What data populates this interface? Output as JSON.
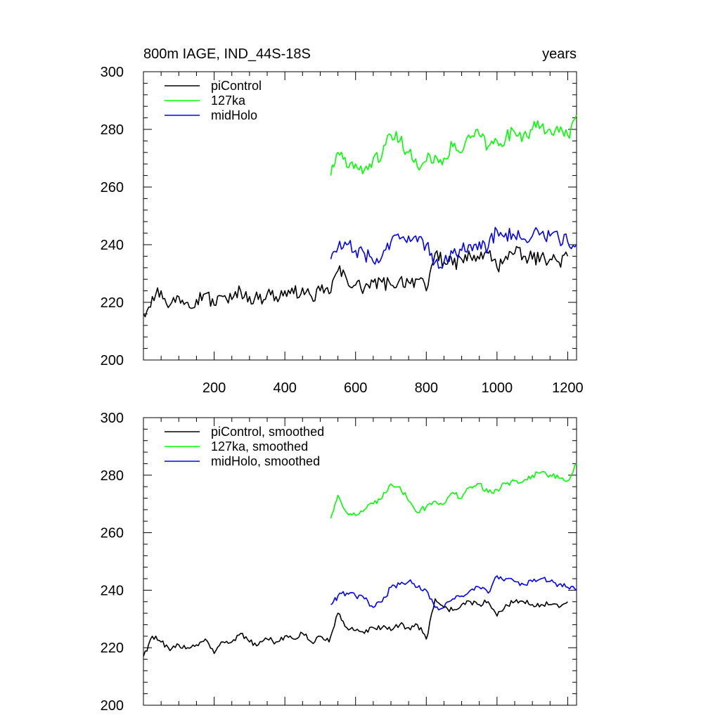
{
  "figure": {
    "title_left": "800m IAGE, IND_44S-18S",
    "title_right": "years"
  },
  "colors": {
    "piControl": "#000000",
    "127ka": "#00ff00",
    "midHolo": "#0000ff"
  },
  "chart_data": [
    {
      "type": "line",
      "title": "800m IAGE, IND_44S-18S",
      "right_label": "years",
      "xlim": [
        0,
        1225
      ],
      "ylim": [
        200,
        300
      ],
      "x_ticks": [
        200,
        400,
        600,
        800,
        1000,
        1200
      ],
      "x_tick_labels": [
        "200",
        "400",
        "600",
        "800",
        "1000",
        "1200"
      ],
      "y_ticks": [
        200,
        220,
        240,
        260,
        280,
        300
      ],
      "y_tick_labels": [
        "200",
        "220",
        "240",
        "260",
        "280",
        "300"
      ],
      "legend_position": "top-left",
      "series": [
        {
          "name": "piControl",
          "color": "#000000",
          "x": [
            0,
            25,
            50,
            75,
            100,
            125,
            150,
            175,
            200,
            225,
            250,
            275,
            300,
            325,
            350,
            375,
            400,
            425,
            450,
            475,
            500,
            525,
            550,
            575,
            600,
            625,
            650,
            675,
            700,
            725,
            750,
            775,
            800,
            825,
            850,
            875,
            900,
            925,
            950,
            975,
            1000,
            1025,
            1050,
            1075,
            1100,
            1125,
            1150,
            1175,
            1200
          ],
          "values": [
            216,
            222,
            224,
            219,
            222,
            220,
            221,
            223,
            219,
            222,
            221,
            224,
            222,
            221,
            223,
            222,
            224,
            223,
            225,
            222,
            224,
            223,
            231,
            228,
            226,
            225,
            227,
            227,
            226,
            228,
            227,
            228,
            224,
            237,
            234,
            233,
            235,
            236,
            235,
            237,
            232,
            236,
            237,
            236,
            235,
            236,
            235,
            234,
            236
          ]
        },
        {
          "name": "127ka",
          "color": "#00ff00",
          "x": [
            530,
            550,
            575,
            600,
            625,
            650,
            675,
            700,
            725,
            750,
            775,
            800,
            825,
            850,
            875,
            900,
            925,
            950,
            975,
            1000,
            1025,
            1050,
            1075,
            1100,
            1125,
            1150,
            1175,
            1200,
            1225
          ],
          "values": [
            264,
            272,
            267,
            268,
            266,
            270,
            271,
            278,
            276,
            272,
            267,
            269,
            271,
            270,
            274,
            272,
            277,
            278,
            274,
            276,
            277,
            279,
            278,
            280,
            281,
            280,
            279,
            278,
            285
          ]
        },
        {
          "name": "midHolo",
          "color": "#0000ff",
          "x": [
            530,
            550,
            575,
            600,
            625,
            650,
            675,
            700,
            725,
            750,
            775,
            800,
            825,
            850,
            875,
            900,
            925,
            950,
            975,
            1000,
            1025,
            1050,
            1075,
            1100,
            1125,
            1150,
            1175,
            1200,
            1225
          ],
          "values": [
            235,
            239,
            240,
            238,
            237,
            234,
            236,
            241,
            242,
            243,
            241,
            240,
            234,
            234,
            237,
            238,
            240,
            241,
            239,
            245,
            244,
            243,
            242,
            243,
            244,
            243,
            242,
            241,
            240
          ]
        }
      ]
    },
    {
      "type": "line",
      "xlim": [
        0,
        1225
      ],
      "ylim": [
        200,
        300
      ],
      "x_ticks": [
        200,
        400,
        600,
        800,
        1000,
        1200
      ],
      "y_ticks": [
        200,
        220,
        240,
        260,
        280,
        300
      ],
      "y_tick_labels": [
        "200",
        "220",
        "240",
        "260",
        "280",
        "300"
      ],
      "legend_position": "top-left",
      "series": [
        {
          "name": "piControl, smoothed",
          "color": "#000000",
          "x": [
            0,
            25,
            50,
            75,
            100,
            125,
            150,
            175,
            200,
            225,
            250,
            275,
            300,
            325,
            350,
            375,
            400,
            425,
            450,
            475,
            500,
            525,
            550,
            575,
            600,
            625,
            650,
            675,
            700,
            725,
            750,
            775,
            800,
            825,
            850,
            875,
            900,
            925,
            950,
            975,
            1000,
            1025,
            1050,
            1075,
            1100,
            1125,
            1150,
            1175,
            1200
          ],
          "values": [
            217,
            224,
            222,
            219,
            221,
            220,
            221,
            223,
            218,
            222,
            222,
            225,
            222,
            221,
            223,
            222,
            224,
            223,
            225,
            222,
            224,
            222,
            232,
            227,
            226,
            225,
            227,
            227,
            226,
            228,
            227,
            228,
            223,
            237,
            234,
            233,
            235,
            236,
            235,
            236,
            231,
            235,
            236,
            236,
            235,
            235,
            235,
            234,
            236
          ]
        },
        {
          "name": "127ka, smoothed",
          "color": "#00ff00",
          "x": [
            530,
            550,
            575,
            600,
            625,
            650,
            675,
            700,
            725,
            750,
            775,
            800,
            825,
            850,
            875,
            900,
            925,
            950,
            975,
            1000,
            1025,
            1050,
            1075,
            1100,
            1125,
            1150,
            1175,
            1200,
            1225
          ],
          "values": [
            265,
            273,
            267,
            266,
            268,
            270,
            272,
            277,
            276,
            271,
            267,
            269,
            271,
            270,
            274,
            272,
            276,
            277,
            274,
            275,
            277,
            278,
            278,
            280,
            281,
            280,
            279,
            278,
            284
          ]
        },
        {
          "name": "midHolo, smoothed",
          "color": "#0000ff",
          "x": [
            530,
            550,
            575,
            600,
            625,
            650,
            675,
            700,
            725,
            750,
            775,
            800,
            825,
            850,
            875,
            900,
            925,
            950,
            975,
            1000,
            1025,
            1050,
            1075,
            1100,
            1125,
            1150,
            1175,
            1200,
            1225
          ],
          "values": [
            235,
            238,
            239,
            238,
            237,
            234,
            236,
            241,
            242,
            243,
            241,
            240,
            234,
            234,
            237,
            238,
            240,
            241,
            239,
            245,
            244,
            243,
            242,
            243,
            244,
            243,
            242,
            241,
            240
          ]
        }
      ]
    }
  ]
}
